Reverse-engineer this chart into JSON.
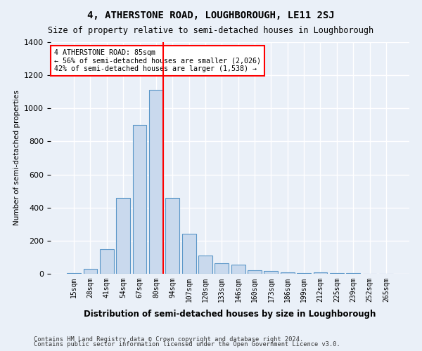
{
  "title": "4, ATHERSTONE ROAD, LOUGHBOROUGH, LE11 2SJ",
  "subtitle": "Size of property relative to semi-detached houses in Loughborough",
  "xlabel": "Distribution of semi-detached houses by size in Loughborough",
  "ylabel": "Number of semi-detached properties",
  "footnote1": "Contains HM Land Registry data © Crown copyright and database right 2024.",
  "footnote2": "Contains public sector information licensed under the Open Government Licence v3.0.",
  "annotation_line1": "4 ATHERSTONE ROAD: 85sqm",
  "annotation_line2": "← 56% of semi-detached houses are smaller (2,026)",
  "annotation_line3": "42% of semi-detached houses are larger (1,538) →",
  "bar_labels": [
    "15sqm",
    "28sqm",
    "41sqm",
    "54sqm",
    "67sqm",
    "80sqm",
    "94sqm",
    "107sqm",
    "120sqm",
    "133sqm",
    "146sqm",
    "160sqm",
    "173sqm",
    "186sqm",
    "199sqm",
    "212sqm",
    "225sqm",
    "239sqm",
    "252sqm",
    "265sqm"
  ],
  "bar_values": [
    5,
    30,
    150,
    460,
    900,
    1110,
    460,
    240,
    110,
    65,
    55,
    20,
    18,
    10,
    5,
    8,
    3,
    5,
    2,
    1
  ],
  "bar_color": "#c9d9ed",
  "bar_edge_color": "#5a96c8",
  "highlight_index": 5,
  "highlight_bar_color": "#c9d9ed",
  "highlight_bar_edge_color": "#5a96c8",
  "vline_x": 5,
  "vline_color": "red",
  "ylim": [
    0,
    1400
  ],
  "yticks": [
    0,
    200,
    400,
    600,
    800,
    1000,
    1200,
    1400
  ],
  "bg_color": "#eaf0f8",
  "plot_bg_color": "#eaf0f8",
  "grid_color": "white",
  "annotation_box_color": "white",
  "annotation_box_edge_color": "red"
}
